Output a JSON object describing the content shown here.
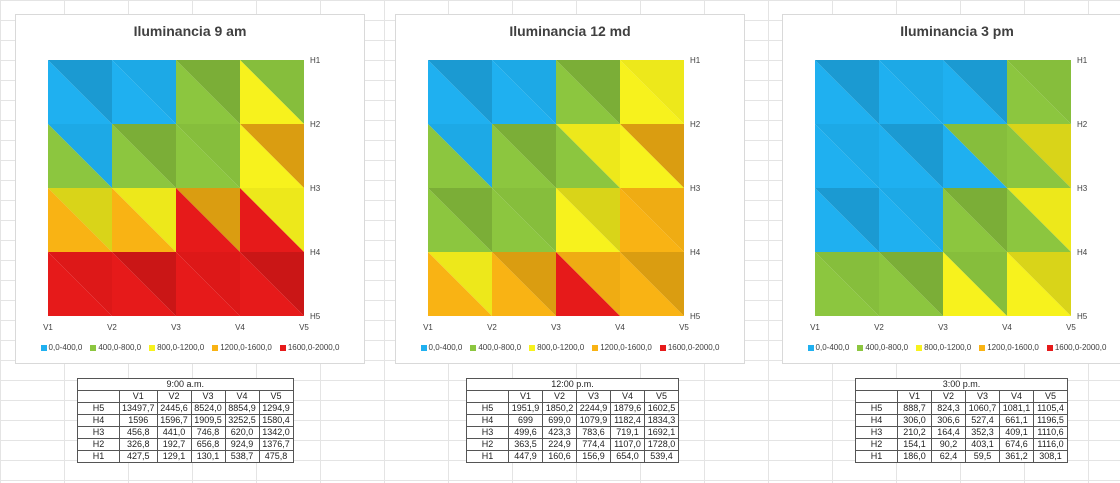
{
  "legend": {
    "bins": [
      {
        "label": "0,0-400,0",
        "color": "#1fb0f0"
      },
      {
        "label": "400,0-800,0",
        "color": "#8cc63f"
      },
      {
        "label": "800,0-1200,0",
        "color": "#f7f21d"
      },
      {
        "label": "1200,0-1600,0",
        "color": "#f9b314"
      },
      {
        "label": "1600,0-2000,0",
        "color": "#e61a1a"
      }
    ]
  },
  "axis": {
    "x_ticks": [
      "V1",
      "V2",
      "V3",
      "V4",
      "V5"
    ],
    "y_ticks": [
      "H1",
      "H2",
      "H3",
      "H4",
      "H5"
    ]
  },
  "chart_data": [
    {
      "type": "heatmap",
      "title": "Iluminancia 9 am",
      "x": [
        "V1",
        "V2",
        "V3",
        "V4",
        "V5"
      ],
      "y": [
        "H1",
        "H2",
        "H3",
        "H4",
        "H5"
      ],
      "values": [
        [
          427.5,
          129.1,
          130.1,
          538.7,
          475.8
        ],
        [
          326.8,
          192.7,
          656.8,
          924.9,
          1376.7
        ],
        [
          456.8,
          441.0,
          746.8,
          620.0,
          1342.0
        ],
        [
          1596,
          1596.7,
          1909.5,
          3252.5,
          1580.4
        ],
        [
          13497.7,
          2445.6,
          8524.0,
          8854.9,
          1294.9
        ]
      ]
    },
    {
      "type": "heatmap",
      "title": "Iluminancia 12 md",
      "x": [
        "V1",
        "V2",
        "V3",
        "V4",
        "V5"
      ],
      "y": [
        "H1",
        "H2",
        "H3",
        "H4",
        "H5"
      ],
      "values": [
        [
          447.9,
          160.6,
          156.9,
          654.0,
          539.4
        ],
        [
          363.5,
          224.9,
          774.4,
          1107.0,
          1728.0
        ],
        [
          499.6,
          423.3,
          783.6,
          719.1,
          1692.1
        ],
        [
          699,
          699.0,
          1079.9,
          1182.4,
          1834.3
        ],
        [
          1951.9,
          1850.2,
          2244.9,
          1879.6,
          1602.5
        ]
      ]
    },
    {
      "type": "heatmap",
      "title": "Iluminancia 3 pm",
      "x": [
        "V1",
        "V2",
        "V3",
        "V4",
        "V5"
      ],
      "y": [
        "H1",
        "H2",
        "H3",
        "H4",
        "H5"
      ],
      "values": [
        [
          186.0,
          62.4,
          59.5,
          361.2,
          308.1
        ],
        [
          154.1,
          90.2,
          403.1,
          674.6,
          1116.0
        ],
        [
          210.2,
          164.4,
          352.3,
          409.1,
          1110.6
        ],
        [
          306.0,
          306.6,
          527.4,
          661.1,
          1196.5
        ],
        [
          888.7,
          824.3,
          1060.7,
          1081.1,
          1105.4
        ]
      ]
    }
  ],
  "tables": [
    {
      "caption": "9:00 a.m.",
      "columns": [
        "V1",
        "V2",
        "V3",
        "V4",
        "V5"
      ],
      "rows": [
        {
          "label": "H5",
          "cells": [
            "13497,7",
            "2445,6",
            "8524,0",
            "8854,9",
            "1294,9"
          ]
        },
        {
          "label": "H4",
          "cells": [
            "1596",
            "1596,7",
            "1909,5",
            "3252,5",
            "1580,4"
          ]
        },
        {
          "label": "H3",
          "cells": [
            "456,8",
            "441,0",
            "746,8",
            "620,0",
            "1342,0"
          ]
        },
        {
          "label": "H2",
          "cells": [
            "326,8",
            "192,7",
            "656,8",
            "924,9",
            "1376,7"
          ]
        },
        {
          "label": "H1",
          "cells": [
            "427,5",
            "129,1",
            "130,1",
            "538,7",
            "475,8"
          ]
        }
      ]
    },
    {
      "caption": "12:00 p.m.",
      "columns": [
        "V1",
        "V2",
        "V3",
        "V4",
        "V5"
      ],
      "rows": [
        {
          "label": "H5",
          "cells": [
            "1951,9",
            "1850,2",
            "2244,9",
            "1879,6",
            "1602,5"
          ]
        },
        {
          "label": "H4",
          "cells": [
            "699",
            "699,0",
            "1079,9",
            "1182,4",
            "1834,3"
          ]
        },
        {
          "label": "H3",
          "cells": [
            "499,6",
            "423,3",
            "783,6",
            "719,1",
            "1692,1"
          ]
        },
        {
          "label": "H2",
          "cells": [
            "363,5",
            "224,9",
            "774,4",
            "1107,0",
            "1728,0"
          ]
        },
        {
          "label": "H1",
          "cells": [
            "447,9",
            "160,6",
            "156,9",
            "654,0",
            "539,4"
          ]
        }
      ]
    },
    {
      "caption": "3:00 p.m.",
      "columns": [
        "V1",
        "V2",
        "V3",
        "V4",
        "V5"
      ],
      "rows": [
        {
          "label": "H5",
          "cells": [
            "888,7",
            "824,3",
            "1060,7",
            "1081,1",
            "1105,4"
          ]
        },
        {
          "label": "H4",
          "cells": [
            "306,0",
            "306,6",
            "527,4",
            "661,1",
            "1196,5"
          ]
        },
        {
          "label": "H3",
          "cells": [
            "210,2",
            "164,4",
            "352,3",
            "409,1",
            "1110,6"
          ]
        },
        {
          "label": "H2",
          "cells": [
            "154,1",
            "90,2",
            "403,1",
            "674,6",
            "1116,0"
          ]
        },
        {
          "label": "H1",
          "cells": [
            "186,0",
            "62,4",
            "59,5",
            "361,2",
            "308,1"
          ]
        }
      ]
    }
  ]
}
